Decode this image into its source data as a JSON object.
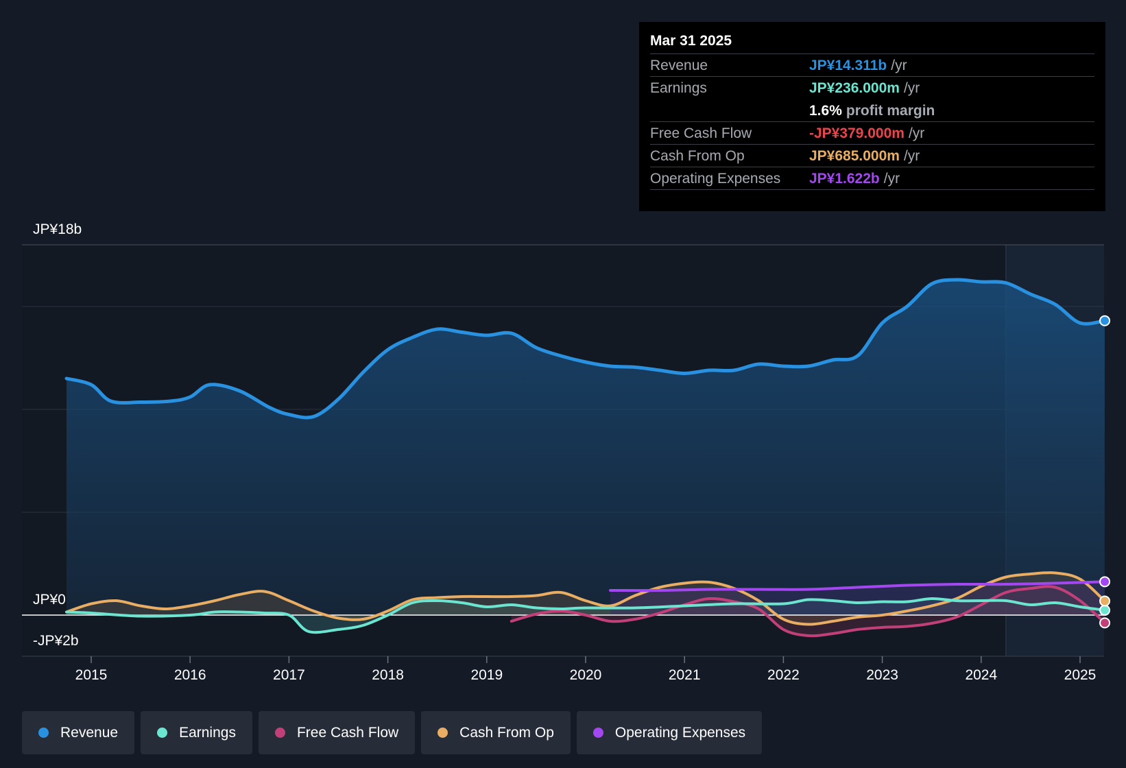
{
  "chart_data": {
    "type": "line",
    "title": "",
    "y_axis_labels": {
      "top": "JP¥18b",
      "zero": "JP¥0",
      "bottom": "-JP¥2b"
    },
    "ylim": [
      -2,
      18
    ],
    "xlim": [
      2014.55,
      2025.25
    ],
    "x_ticks": [
      "2015",
      "2016",
      "2017",
      "2018",
      "2019",
      "2020",
      "2021",
      "2022",
      "2023",
      "2024",
      "2025"
    ],
    "forecast_start": 2024.25,
    "series": [
      {
        "name": "Revenue",
        "color": "#2a91e0",
        "x": [
          2014.75,
          2015.0,
          2015.2,
          2015.5,
          2015.8,
          2016.0,
          2016.2,
          2016.5,
          2016.8,
          2017.0,
          2017.25,
          2017.5,
          2017.75,
          2018.0,
          2018.25,
          2018.5,
          2018.75,
          2019.0,
          2019.25,
          2019.5,
          2019.75,
          2020.0,
          2020.25,
          2020.5,
          2020.75,
          2021.0,
          2021.25,
          2021.5,
          2021.75,
          2022.0,
          2022.25,
          2022.5,
          2022.75,
          2023.0,
          2023.25,
          2023.5,
          2023.75,
          2024.0,
          2024.25,
          2024.5,
          2024.75,
          2025.0,
          2025.25
        ],
        "values": [
          11.5,
          11.2,
          10.4,
          10.35,
          10.4,
          10.6,
          11.2,
          10.9,
          10.1,
          9.75,
          9.65,
          10.5,
          11.8,
          12.9,
          13.5,
          13.9,
          13.75,
          13.6,
          13.7,
          13.0,
          12.6,
          12.3,
          12.1,
          12.05,
          11.9,
          11.75,
          11.9,
          11.9,
          12.2,
          12.1,
          12.1,
          12.4,
          12.6,
          14.2,
          15.0,
          16.1,
          16.3,
          16.2,
          16.15,
          15.6,
          15.1,
          14.2,
          14.31
        ]
      },
      {
        "name": "Earnings",
        "color": "#6ce5d0",
        "x": [
          2014.75,
          2015.0,
          2015.5,
          2016.0,
          2016.25,
          2016.5,
          2016.75,
          2017.0,
          2017.2,
          2017.5,
          2017.75,
          2018.0,
          2018.25,
          2018.5,
          2018.75,
          2019.0,
          2019.25,
          2019.5,
          2019.75,
          2020.0,
          2020.5,
          2021.0,
          2021.5,
          2022.0,
          2022.25,
          2022.5,
          2022.75,
          2023.0,
          2023.25,
          2023.5,
          2023.75,
          2024.0,
          2024.25,
          2024.5,
          2024.75,
          2025.0,
          2025.25
        ],
        "values": [
          0.15,
          0.1,
          -0.05,
          0.0,
          0.15,
          0.15,
          0.1,
          0.0,
          -0.8,
          -0.7,
          -0.5,
          0.0,
          0.6,
          0.7,
          0.6,
          0.4,
          0.5,
          0.35,
          0.3,
          0.35,
          0.35,
          0.45,
          0.55,
          0.55,
          0.75,
          0.7,
          0.6,
          0.65,
          0.65,
          0.8,
          0.7,
          0.7,
          0.7,
          0.5,
          0.6,
          0.4,
          0.236
        ]
      },
      {
        "name": "Free Cash Flow",
        "color": "#c2407a",
        "x": [
          2019.25,
          2019.5,
          2019.75,
          2020.0,
          2020.25,
          2020.5,
          2020.75,
          2021.0,
          2021.25,
          2021.5,
          2021.75,
          2022.0,
          2022.25,
          2022.5,
          2022.75,
          2023.0,
          2023.25,
          2023.5,
          2023.75,
          2024.0,
          2024.25,
          2024.5,
          2024.75,
          2025.0,
          2025.25
        ],
        "values": [
          -0.3,
          0.05,
          0.2,
          0.0,
          -0.3,
          -0.2,
          0.1,
          0.5,
          0.8,
          0.65,
          0.3,
          -0.7,
          -1.0,
          -0.9,
          -0.7,
          -0.6,
          -0.55,
          -0.4,
          -0.1,
          0.5,
          1.1,
          1.3,
          1.35,
          0.7,
          -0.379
        ]
      },
      {
        "name": "Cash From Op",
        "color": "#e9ad64",
        "x": [
          2014.75,
          2015.0,
          2015.25,
          2015.5,
          2015.75,
          2016.0,
          2016.25,
          2016.5,
          2016.75,
          2017.0,
          2017.25,
          2017.5,
          2017.75,
          2018.0,
          2018.25,
          2018.5,
          2018.75,
          2019.0,
          2019.25,
          2019.5,
          2019.75,
          2020.0,
          2020.25,
          2020.5,
          2020.75,
          2021.0,
          2021.25,
          2021.5,
          2021.75,
          2022.0,
          2022.25,
          2022.5,
          2022.75,
          2023.0,
          2023.25,
          2023.5,
          2023.75,
          2024.0,
          2024.25,
          2024.5,
          2024.75,
          2025.0,
          2025.25
        ],
        "values": [
          0.15,
          0.55,
          0.7,
          0.45,
          0.3,
          0.45,
          0.7,
          1.0,
          1.15,
          0.7,
          0.2,
          -0.15,
          -0.2,
          0.2,
          0.75,
          0.85,
          0.9,
          0.9,
          0.9,
          0.95,
          1.1,
          0.7,
          0.45,
          0.95,
          1.35,
          1.55,
          1.6,
          1.3,
          0.7,
          -0.2,
          -0.45,
          -0.3,
          -0.1,
          0.0,
          0.2,
          0.45,
          0.8,
          1.4,
          1.85,
          2.0,
          2.05,
          1.75,
          0.685
        ]
      },
      {
        "name": "Operating Expenses",
        "color": "#a347f0",
        "x": [
          2020.25,
          2020.75,
          2021.25,
          2021.75,
          2022.25,
          2022.75,
          2023.25,
          2023.75,
          2024.25,
          2024.75,
          2025.25
        ],
        "values": [
          1.2,
          1.2,
          1.25,
          1.25,
          1.25,
          1.35,
          1.45,
          1.5,
          1.5,
          1.55,
          1.622
        ]
      }
    ]
  },
  "tooltip": {
    "date": "Mar 31 2025",
    "rows": {
      "revenue": {
        "label": "Revenue",
        "value": "JP¥14.311b",
        "unit": "/yr",
        "color": "#2a91e0"
      },
      "earnings": {
        "label": "Earnings",
        "value": "JP¥236.000m",
        "unit": "/yr",
        "color": "#6ce5d0"
      },
      "margin": {
        "value": "1.6%",
        "text": "profit margin"
      },
      "fcf": {
        "label": "Free Cash Flow",
        "value": "-JP¥379.000m",
        "unit": "/yr",
        "color": "#ea444c"
      },
      "cfo": {
        "label": "Cash From Op",
        "value": "JP¥685.000m",
        "unit": "/yr",
        "color": "#e9ad64"
      },
      "opex": {
        "label": "Operating Expenses",
        "value": "JP¥1.622b",
        "unit": "/yr",
        "color": "#a347f0"
      }
    }
  },
  "legend": [
    {
      "label": "Revenue",
      "color": "#2a91e0"
    },
    {
      "label": "Earnings",
      "color": "#6ce5d0"
    },
    {
      "label": "Free Cash Flow",
      "color": "#c2407a"
    },
    {
      "label": "Cash From Op",
      "color": "#e9ad64"
    },
    {
      "label": "Operating Expenses",
      "color": "#a347f0"
    }
  ]
}
